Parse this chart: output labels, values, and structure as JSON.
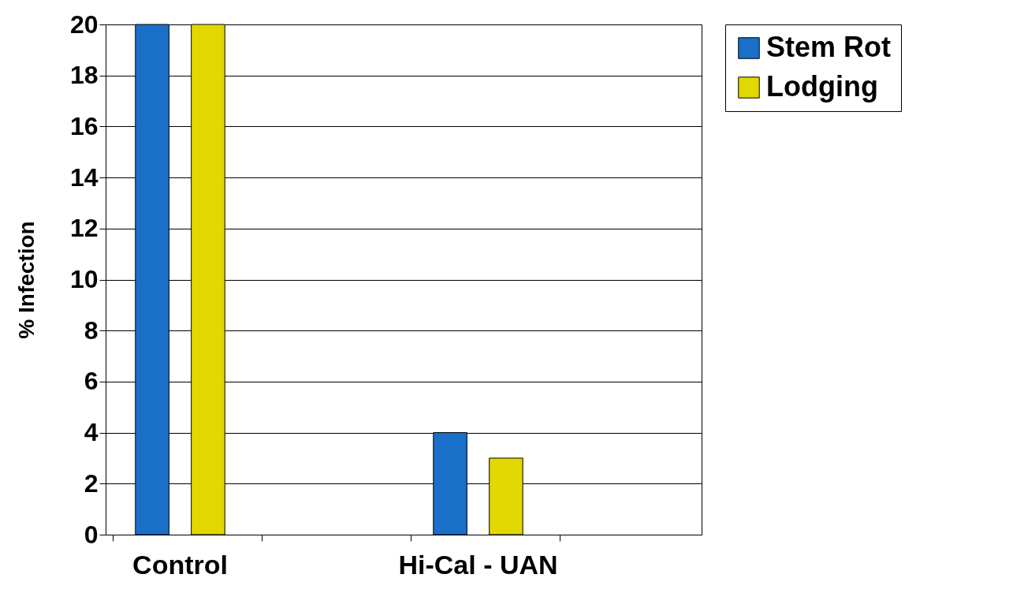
{
  "chart_data": {
    "type": "bar",
    "ylabel": "% Infection",
    "categories": [
      "Control",
      null,
      "Hi-Cal - UAN",
      null
    ],
    "series": [
      {
        "name": "Stem Rot",
        "color": "#1a6fc8",
        "values": [
          20,
          null,
          4,
          null
        ]
      },
      {
        "name": "Lodging",
        "color": "#e0d800",
        "values": [
          20,
          null,
          3,
          null
        ]
      }
    ],
    "ylim": [
      0,
      20
    ],
    "yticks": [
      0,
      2,
      4,
      6,
      8,
      10,
      12,
      14,
      16,
      18,
      20
    ],
    "grid": "y",
    "legend": "right"
  }
}
